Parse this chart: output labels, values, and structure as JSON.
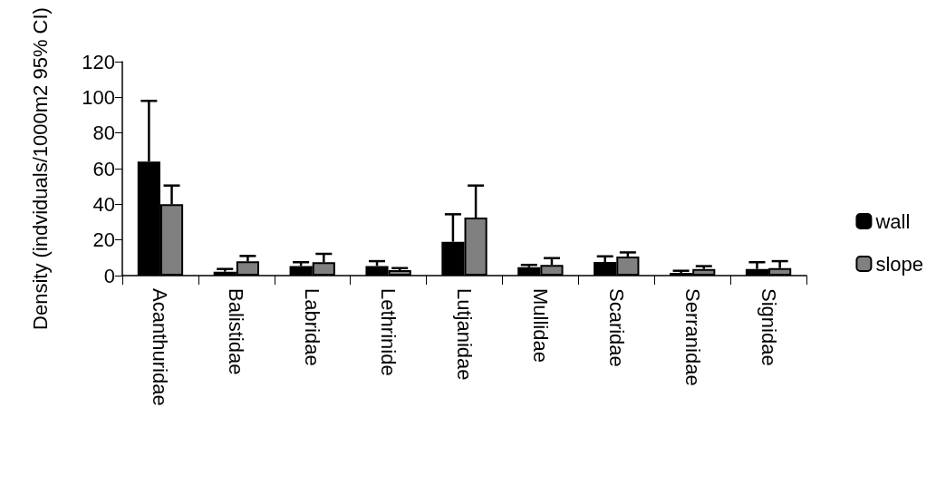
{
  "chart_data": {
    "type": "bar",
    "ylabel": "Density (indviduals/1000m2 95% CI)",
    "categories": [
      "Acanthuridae",
      "Balistidae",
      "Labridae",
      "Lethrinide",
      "Lutjanidae",
      "Mullidae",
      "Scaridae",
      "Serranidae",
      "Signidae"
    ],
    "series": [
      {
        "name": "wall",
        "color": "#000000",
        "values": [
          64,
          2.2,
          5.4,
          5.4,
          19,
          4.7,
          7.6,
          1.5,
          3.7
        ],
        "errors": [
          [
            64,
            98
          ],
          [
            2.2,
            3.7
          ],
          [
            5.4,
            7.5
          ],
          [
            5.4,
            8.1
          ],
          [
            19,
            34.4
          ],
          [
            4.7,
            6
          ],
          [
            7.6,
            10.8
          ],
          [
            1.5,
            2.7
          ],
          [
            3.7,
            7.5
          ]
        ]
      },
      {
        "name": "slope",
        "color": "#808080",
        "values": [
          40,
          8,
          7.5,
          3,
          32.5,
          6,
          10.7,
          3.7,
          4.2
        ],
        "errors": [
          [
            40,
            50.5
          ],
          [
            8,
            11
          ],
          [
            7.5,
            12.2
          ],
          [
            3,
            4.2
          ],
          [
            32.5,
            50.5
          ],
          [
            6,
            9.8
          ],
          [
            10.7,
            13
          ],
          [
            3.7,
            5.3
          ],
          [
            4.2,
            8.1
          ]
        ]
      }
    ],
    "ylim": [
      0,
      120
    ],
    "yticks": [
      0,
      20,
      40,
      60,
      80,
      100,
      120
    ],
    "grid": false,
    "legend": "right"
  }
}
